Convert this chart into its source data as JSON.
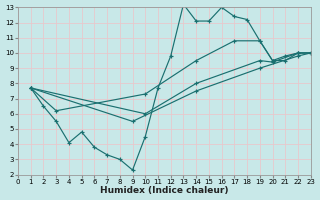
{
  "xlabel": "Humidex (Indice chaleur)",
  "bg_color": "#c8e8e8",
  "grid_color": "#e8c8cc",
  "line_color": "#1a7070",
  "xlim": [
    0,
    23
  ],
  "ylim": [
    2,
    13
  ],
  "xticks": [
    0,
    1,
    2,
    3,
    4,
    5,
    6,
    7,
    8,
    9,
    10,
    11,
    12,
    13,
    14,
    15,
    16,
    17,
    18,
    19,
    20,
    21,
    22,
    23
  ],
  "yticks": [
    2,
    3,
    4,
    5,
    6,
    7,
    8,
    9,
    10,
    11,
    12,
    13
  ],
  "line1_x": [
    1,
    2,
    3,
    4,
    5,
    6,
    7,
    8,
    9,
    10,
    11,
    12,
    13,
    14,
    15,
    16,
    17,
    18,
    19,
    20,
    21,
    22,
    23
  ],
  "line1_y": [
    7.7,
    6.5,
    5.5,
    4.1,
    4.8,
    3.8,
    3.3,
    3.0,
    2.3,
    4.5,
    7.7,
    9.8,
    13.2,
    12.1,
    12.1,
    13.0,
    12.4,
    12.2,
    10.8,
    9.5,
    9.8,
    10.0,
    10.0
  ],
  "line2_x": [
    1,
    3,
    10,
    14,
    17,
    19,
    20,
    21,
    22,
    23
  ],
  "line2_y": [
    7.7,
    6.2,
    7.3,
    9.5,
    10.8,
    10.8,
    9.5,
    9.5,
    10.0,
    10.0
  ],
  "line3_x": [
    1,
    10,
    14,
    19,
    20,
    22,
    23
  ],
  "line3_y": [
    7.7,
    6.0,
    8.0,
    9.5,
    9.4,
    10.0,
    10.0
  ],
  "line4_x": [
    1,
    9,
    14,
    19,
    22,
    23
  ],
  "line4_y": [
    7.7,
    5.5,
    7.5,
    9.0,
    9.8,
    10.0
  ]
}
